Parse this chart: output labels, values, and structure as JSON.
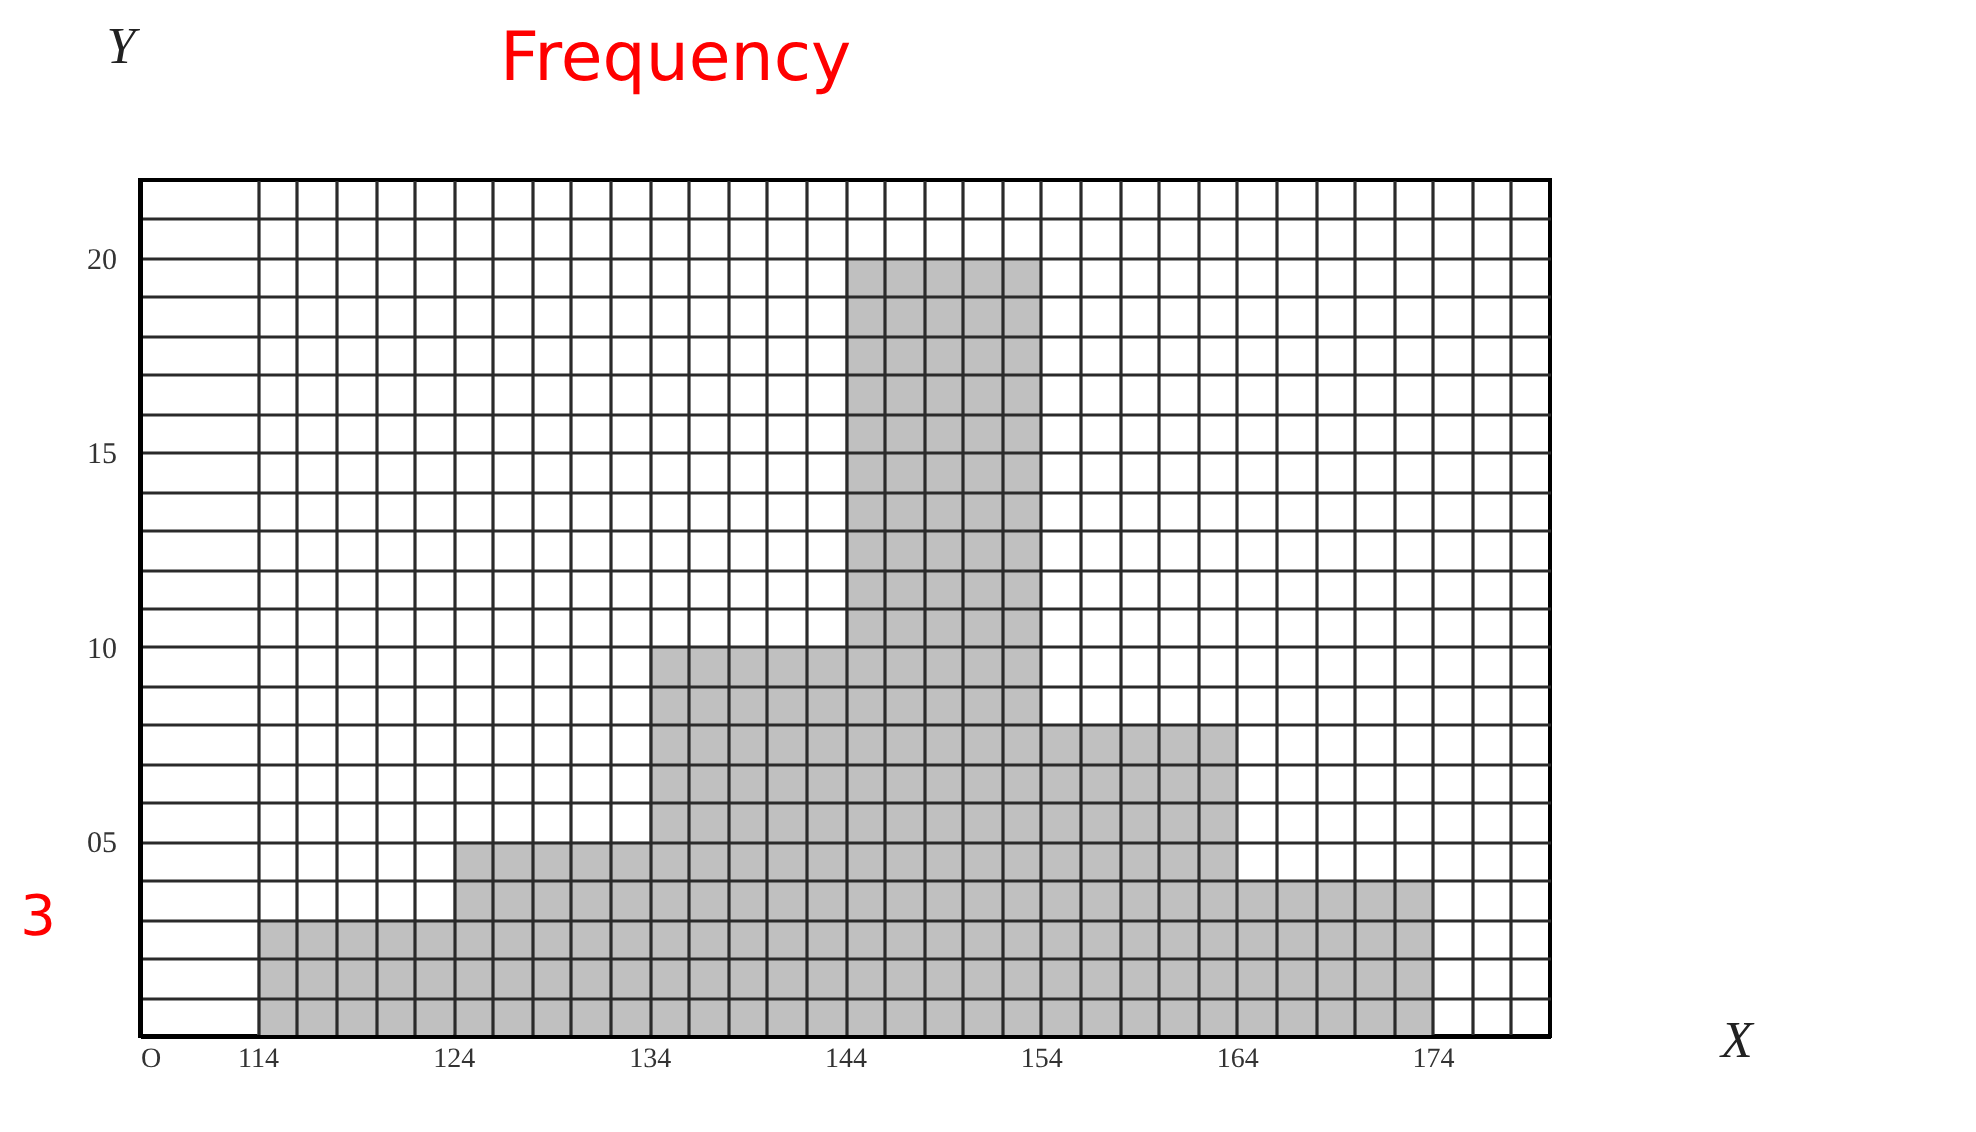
{
  "chart_data": {
    "type": "histogram",
    "xlabel": "X",
    "ylabel": "Y",
    "bins": [
      114,
      124,
      134,
      144,
      154,
      164,
      174
    ],
    "values": [
      3,
      5,
      10,
      20,
      8,
      4
    ],
    "color": "#c0c0c0",
    "xlim": [
      108,
      180
    ],
    "ylim": [
      0,
      22
    ],
    "xticks": [
      {
        "value": 108,
        "label": "O"
      },
      114,
      {
        "value": 116,
        "label": null
      },
      {
        "value": 118,
        "label": null
      },
      {
        "value": 120,
        "label": null
      },
      {
        "value": 122,
        "label": null
      },
      124,
      {
        "value": 126,
        "label": null
      },
      {
        "value": 128,
        "label": null
      },
      {
        "value": 130,
        "label": null
      },
      {
        "value": 132,
        "label": null
      },
      134,
      {
        "value": 136,
        "label": null
      },
      {
        "value": 138,
        "label": null
      },
      {
        "value": 140,
        "label": null
      },
      {
        "value": 142,
        "label": null
      },
      144,
      {
        "value": 146,
        "label": null
      },
      {
        "value": 148,
        "label": null
      },
      {
        "value": 150,
        "label": null
      },
      {
        "value": 152,
        "label": null
      },
      154,
      {
        "value": 156,
        "label": null
      },
      {
        "value": 158,
        "label": null
      },
      {
        "value": 160,
        "label": null
      },
      {
        "value": 162,
        "label": null
      },
      164,
      {
        "value": 166,
        "label": null
      },
      {
        "value": 168,
        "label": null
      },
      {
        "value": 170,
        "label": null
      },
      {
        "value": 172,
        "label": null
      },
      174,
      {
        "value": 176,
        "label": null
      },
      {
        "value": 178,
        "label": null
      }
    ],
    "yticks": [
      {
        "value": 1,
        "label": null
      },
      {
        "value": 2,
        "label": null
      },
      {
        "value": 3,
        "label": null
      },
      {
        "value": 4,
        "label": null
      },
      {
        "value": 5,
        "label": "05"
      },
      {
        "value": 6,
        "label": null
      },
      {
        "value": 7,
        "label": null
      },
      {
        "value": 8,
        "label": null
      },
      {
        "value": 9,
        "label": null
      },
      10,
      {
        "value": 11,
        "label": null
      },
      {
        "value": 12,
        "label": null
      },
      {
        "value": 13,
        "label": null
      },
      {
        "value": 14,
        "label": null
      },
      15,
      {
        "value": 16,
        "label": null
      },
      {
        "value": 17,
        "label": null
      },
      {
        "value": 18,
        "label": null
      },
      {
        "value": 19,
        "label": null
      },
      20,
      {
        "value": 21,
        "label": null
      }
    ],
    "grid": true,
    "annotations": [
      "Frequency",
      "3"
    ]
  }
}
